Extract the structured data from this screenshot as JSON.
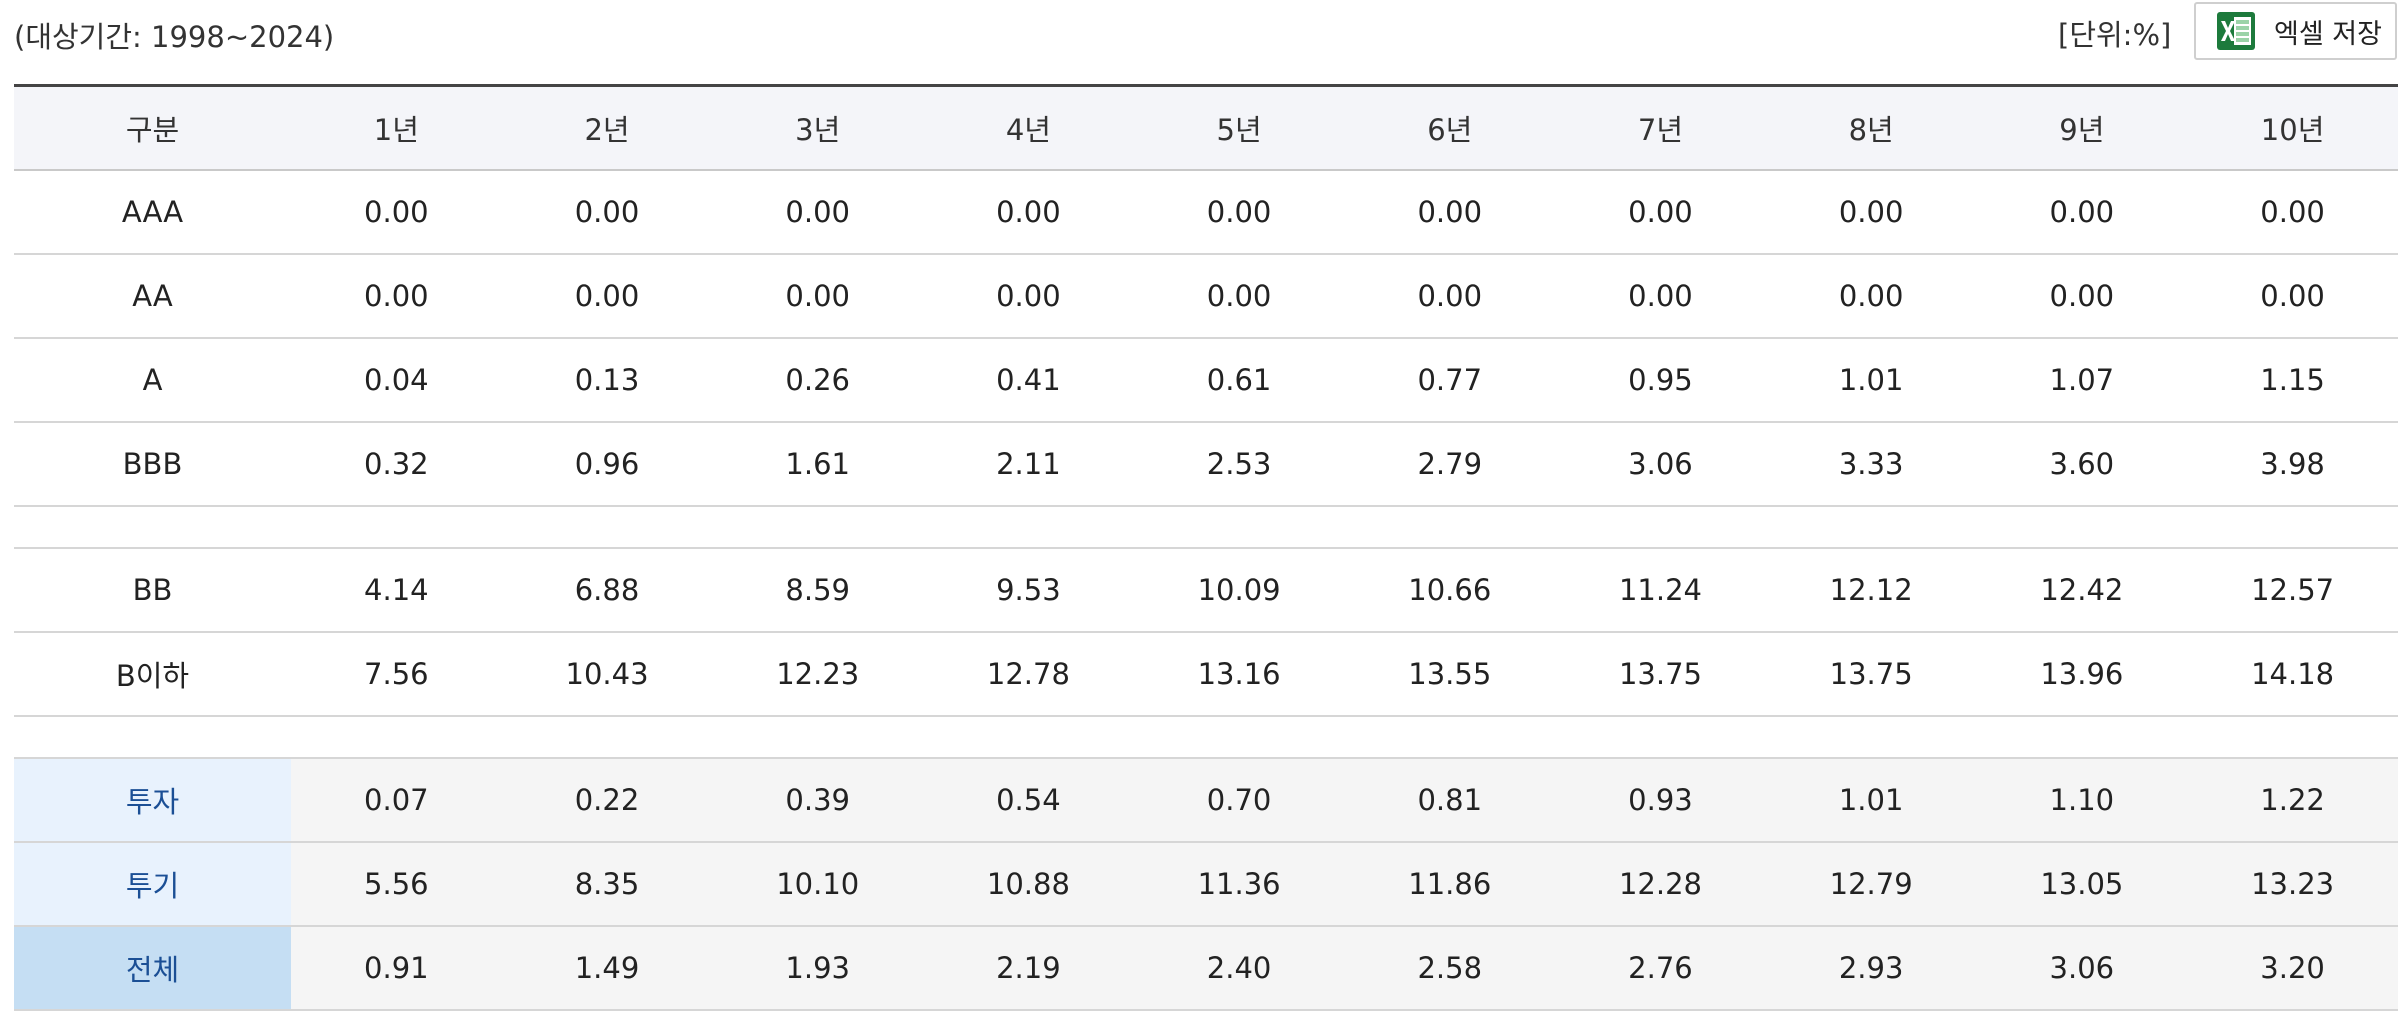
{
  "header": {
    "period_text": "(대상기간: 1998~2024)",
    "unit_text": "[단위:%]",
    "excel_button_label": "엑셀 저장",
    "excel_icon": "excel-icon",
    "excel_icon_color": "#1d7a3c"
  },
  "table": {
    "columns": [
      "구분",
      "1년",
      "2년",
      "3년",
      "4년",
      "5년",
      "6년",
      "7년",
      "8년",
      "9년",
      "10년"
    ],
    "groups": [
      {
        "rows": [
          {
            "label": "AAA",
            "values": [
              "0.00",
              "0.00",
              "0.00",
              "0.00",
              "0.00",
              "0.00",
              "0.00",
              "0.00",
              "0.00",
              "0.00"
            ]
          },
          {
            "label": "AA",
            "values": [
              "0.00",
              "0.00",
              "0.00",
              "0.00",
              "0.00",
              "0.00",
              "0.00",
              "0.00",
              "0.00",
              "0.00"
            ]
          },
          {
            "label": "A",
            "values": [
              "0.04",
              "0.13",
              "0.26",
              "0.41",
              "0.61",
              "0.77",
              "0.95",
              "1.01",
              "1.07",
              "1.15"
            ]
          },
          {
            "label": "BBB",
            "values": [
              "0.32",
              "0.96",
              "1.61",
              "2.11",
              "2.53",
              "2.79",
              "3.06",
              "3.33",
              "3.60",
              "3.98"
            ]
          }
        ]
      },
      {
        "rows": [
          {
            "label": "BB",
            "values": [
              "4.14",
              "6.88",
              "8.59",
              "9.53",
              "10.09",
              "10.66",
              "11.24",
              "12.12",
              "12.42",
              "12.57"
            ]
          },
          {
            "label": "B이하",
            "values": [
              "7.56",
              "10.43",
              "12.23",
              "12.78",
              "13.16",
              "13.55",
              "13.75",
              "13.75",
              "13.96",
              "14.18"
            ]
          }
        ]
      }
    ],
    "summary": [
      {
        "label": "투자",
        "values": [
          "0.07",
          "0.22",
          "0.39",
          "0.54",
          "0.70",
          "0.81",
          "0.93",
          "1.01",
          "1.10",
          "1.22"
        ]
      },
      {
        "label": "투기",
        "values": [
          "5.56",
          "8.35",
          "10.10",
          "10.88",
          "11.36",
          "11.86",
          "12.28",
          "12.79",
          "13.05",
          "13.23"
        ]
      },
      {
        "label": "전체",
        "values": [
          "0.91",
          "1.49",
          "1.93",
          "2.19",
          "2.40",
          "2.58",
          "2.76",
          "2.93",
          "3.06",
          "3.20"
        ],
        "total": true
      }
    ]
  },
  "colors": {
    "summary_label_text": "#1b4f95",
    "summary_label_bg": "#e8f2fd",
    "total_label_bg": "#c5def3",
    "header_bg": "#f4f5f9"
  }
}
